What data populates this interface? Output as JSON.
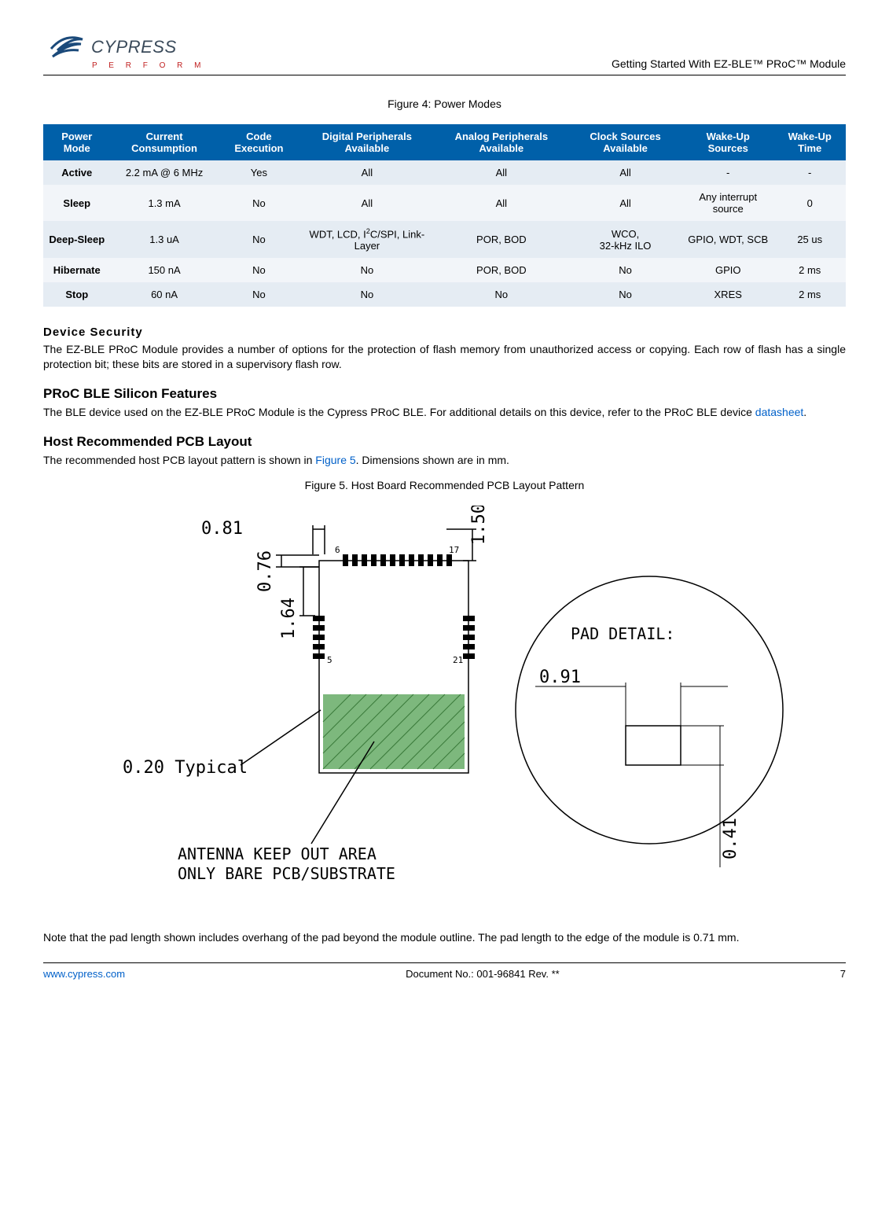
{
  "header": {
    "logo_main": "CYPRESS",
    "logo_sub": "P E R F O R M",
    "doc_title": "Getting Started With EZ-BLE™ PRoC™ Module"
  },
  "fig4": {
    "caption": "Figure 4:  Power Modes"
  },
  "table": {
    "headers": [
      "Power Mode",
      "Current Consumption",
      "Code Execution",
      "Digital Peripherals Available",
      "Analog Peripherals Available",
      "Clock Sources Available",
      "Wake-Up Sources",
      "Wake-Up Time"
    ],
    "rows": [
      [
        "Active",
        "2.2 mA @ 6 MHz",
        "Yes",
        "All",
        "All",
        "All",
        "-",
        "-"
      ],
      [
        "Sleep",
        "1.3 mA",
        "No",
        "All",
        "All",
        "All",
        "Any interrupt source",
        "0"
      ],
      [
        "Deep-Sleep",
        "1.3 uA",
        "No",
        "WDT, LCD, I2C/SPI, Link-Layer",
        "POR, BOD",
        "WCO, 32-kHz ILO",
        "GPIO, WDT, SCB",
        "25 us"
      ],
      [
        "Hibernate",
        "150 nA",
        "No",
        "No",
        "POR, BOD",
        "No",
        "GPIO",
        "2 ms"
      ],
      [
        "Stop",
        "60 nA",
        "No",
        "No",
        "No",
        "No",
        "XRES",
        "2 ms"
      ]
    ],
    "header_bg": "#0060a9",
    "row_bg1": "#e5ecf3",
    "row_bg2": "#f2f5f9"
  },
  "sec_security": {
    "title": "Device Security",
    "body": "The EZ-BLE PRoC Module provides a number of options for the protection of flash memory from unauthorized access or copying. Each row of flash has a single protection bit; these bits are stored in a supervisory flash row."
  },
  "sec_proc": {
    "title": "PRoC BLE Silicon Features",
    "body_pre": "The BLE device used on the EZ-BLE PRoC Module is the Cypress PRoC BLE.  For additional details on this device, refer to the PRoC BLE device ",
    "link": "datasheet",
    "body_post": "."
  },
  "sec_pcb": {
    "title": "Host Recommended PCB Layout",
    "body_pre": "The recommended host PCB layout pattern is shown in ",
    "link": "Figure 5",
    "body_post": ". Dimensions shown are in mm."
  },
  "fig5": {
    "caption": "Figure 5. Host Board Recommended PCB Layout Pattern",
    "dims": {
      "d081": "0.81",
      "d076": "0.76",
      "d164": "1.64",
      "d150": "1.50",
      "typ": "0.20 Typical",
      "keepout_l1": "ANTENNA KEEP OUT AREA",
      "keepout_l2": "ONLY BARE PCB/SUBSTRATE",
      "pad_detail": "PAD DETAIL:",
      "d091": "0.91",
      "d041": "0.41",
      "n6": "6",
      "n17": "17",
      "n5": "5",
      "n21": "21"
    }
  },
  "note": "Note that the pad length shown includes overhang of the pad beyond the module outline. The pad length to the edge of the module is 0.71 mm.",
  "footer": {
    "url": "www.cypress.com",
    "docnum": "Document No.: 001-96841 Rev. **",
    "page": "7"
  }
}
